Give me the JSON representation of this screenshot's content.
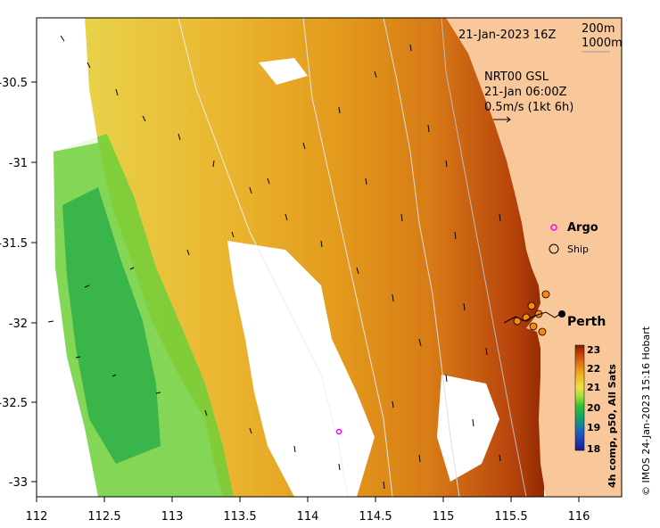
{
  "map": {
    "x_axis": {
      "ticks": [
        "112",
        "112.5",
        "113",
        "113.5",
        "114",
        "114.5",
        "115",
        "115.5",
        "116"
      ]
    },
    "y_axis": {
      "ticks": [
        "-30.5",
        "-31",
        "-31.5",
        "-32",
        "-32.5",
        "-33"
      ]
    },
    "date_label": "21-Jan-2023 16Z",
    "isobaths": [
      "200m",
      "1000m"
    ],
    "current_info": {
      "line1": "NRT00 GSL",
      "line2": "21-Jan 06:00Z",
      "line3": "0.5m/s (1kt 6h)"
    },
    "legend": {
      "argo": "Argo",
      "ship": "Ship"
    },
    "city": "Perth",
    "colorbar": {
      "ticks": [
        "23",
        "22",
        "21",
        "20",
        "19",
        "18"
      ],
      "label": "4h comp, p50, All Sats",
      "colors": [
        "#8b1a00",
        "#c23d0a",
        "#e07b12",
        "#f0b020",
        "#f0e040",
        "#a8e040",
        "#30c030",
        "#10a070",
        "#2060c0",
        "#1a1a9a"
      ]
    },
    "credit": "© IMOS 24-Jan-2023 15:16 Hobart",
    "colors": {
      "land": "#f9c89a",
      "argo": "#ff00ff"
    }
  }
}
